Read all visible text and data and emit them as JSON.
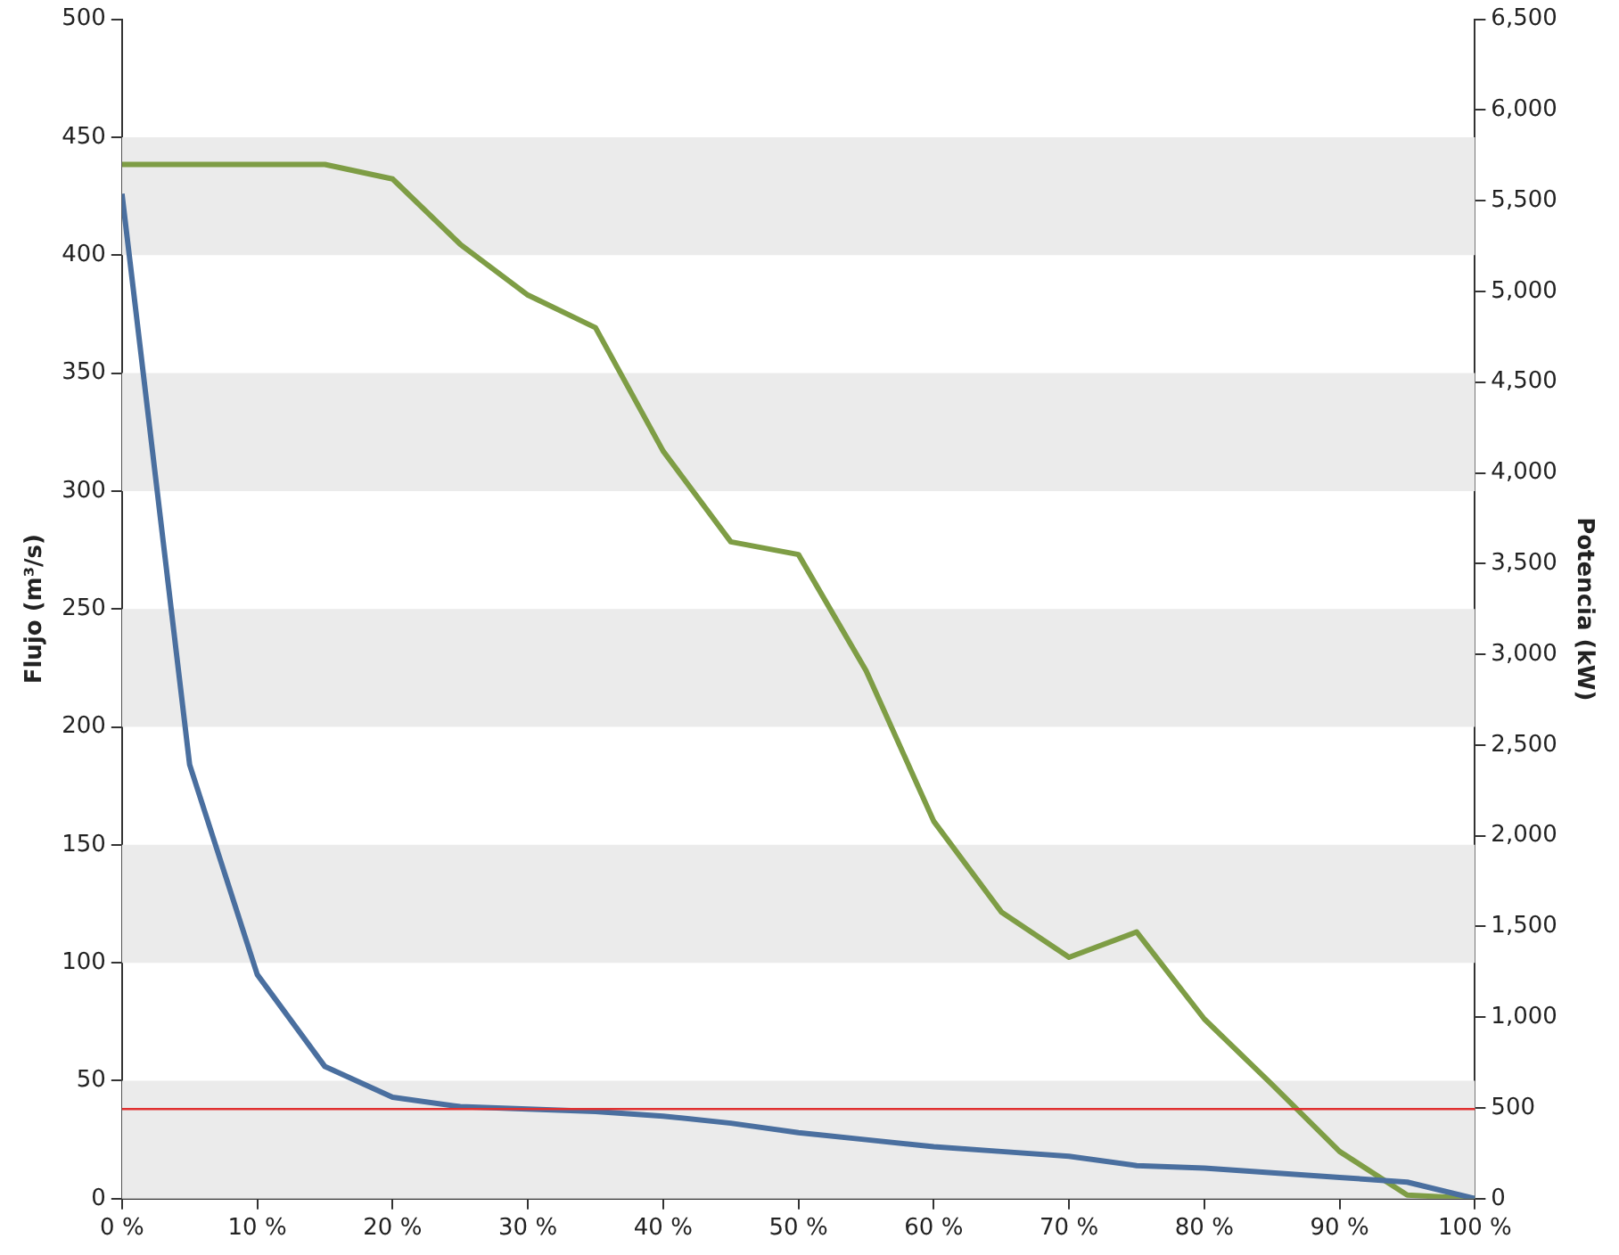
{
  "chart_data": {
    "type": "line",
    "ylabel": "Flujo (m³/s)",
    "y2label": "Potencia (kW)",
    "x": [
      0,
      5,
      10,
      15,
      20,
      25,
      30,
      35,
      40,
      45,
      50,
      55,
      60,
      65,
      70,
      75,
      80,
      85,
      90,
      95,
      100
    ],
    "series": [
      {
        "color": "#4a6f9f",
        "values": [
          426,
          184,
          95,
          56,
          43,
          39,
          38,
          37,
          35,
          32,
          28,
          25,
          22,
          20,
          18,
          14,
          13,
          11,
          9,
          7,
          0
        ]
      },
      {
        "color": "#7e9d45",
        "axis": "y2",
        "values": [
          5700,
          5700,
          5700,
          5700,
          5620,
          5260,
          4980,
          4800,
          4120,
          3620,
          3550,
          2910,
          2080,
          1580,
          1330,
          1470,
          990,
          630,
          260,
          20,
          0
        ]
      }
    ],
    "xlim": [
      0,
      100
    ],
    "xticks": [
      {
        "value": 0,
        "label": "0 %"
      },
      {
        "value": 10,
        "label": "10 %"
      },
      {
        "value": 20,
        "label": "20 %"
      },
      {
        "value": 30,
        "label": "30 %"
      },
      {
        "value": 40,
        "label": "40 %"
      },
      {
        "value": 50,
        "label": "50 %"
      },
      {
        "value": 60,
        "label": "60 %"
      },
      {
        "value": 70,
        "label": "70 %"
      },
      {
        "value": 80,
        "label": "80 %"
      },
      {
        "value": 90,
        "label": "90 %"
      },
      {
        "value": 100,
        "label": "100 %"
      }
    ],
    "ylim": [
      0,
      500
    ],
    "yticks": [
      0,
      50,
      100,
      150,
      200,
      250,
      300,
      350,
      400,
      450,
      500
    ],
    "y2lim": [
      0,
      6500
    ],
    "y2ticks": [
      0,
      500,
      {
        "value": 1000,
        "label": "1,000"
      },
      {
        "value": 1500,
        "label": "1,500"
      },
      {
        "value": 2000,
        "label": "2,000"
      },
      {
        "value": 2500,
        "label": "2,500"
      },
      {
        "value": 3000,
        "label": "3,000"
      },
      {
        "value": 3500,
        "label": "3,500"
      },
      {
        "value": 4000,
        "label": "4,000"
      },
      {
        "value": 4500,
        "label": "4,500"
      },
      {
        "value": 5000,
        "label": "5,000"
      },
      {
        "value": 5500,
        "label": "5,500"
      },
      {
        "value": 6000,
        "label": "6,000"
      },
      {
        "value": 6500,
        "label": "6,500"
      }
    ],
    "bands": [
      {
        "axis": "y",
        "from": 0,
        "to": 50,
        "color": "#ebebeb"
      },
      {
        "axis": "y",
        "from": 100,
        "to": 150,
        "color": "#ebebeb"
      },
      {
        "axis": "y",
        "from": 200,
        "to": 250,
        "color": "#ebebeb"
      },
      {
        "axis": "y",
        "from": 300,
        "to": 350,
        "color": "#ebebeb"
      },
      {
        "axis": "y",
        "from": 400,
        "to": 450,
        "color": "#ebebeb"
      }
    ],
    "ref_lines": [
      {
        "axis": "y",
        "value": 38,
        "color": "#e03030"
      }
    ],
    "grid": false,
    "legend": false,
    "marker": "none",
    "line_style": "solid"
  }
}
